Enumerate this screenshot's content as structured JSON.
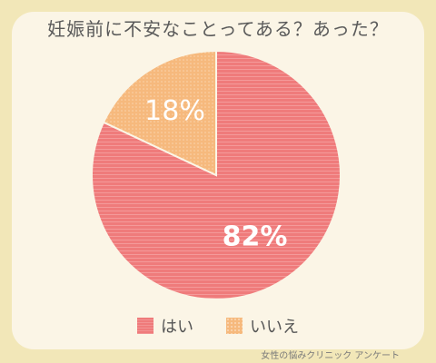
{
  "title": "妊娠前に不安なことってある？あった？",
  "source": "女性の悩みクリニック アンケート",
  "chart_data": {
    "type": "pie",
    "labels": [
      "はい",
      "いいえ"
    ],
    "values": [
      82,
      18
    ],
    "value_labels": [
      "82%",
      "18%"
    ],
    "colors": [
      "#ef7b7b",
      "#f6b97d"
    ],
    "legend": "bottom",
    "start_angle": "12 o'clock",
    "direction": "clockwise"
  }
}
